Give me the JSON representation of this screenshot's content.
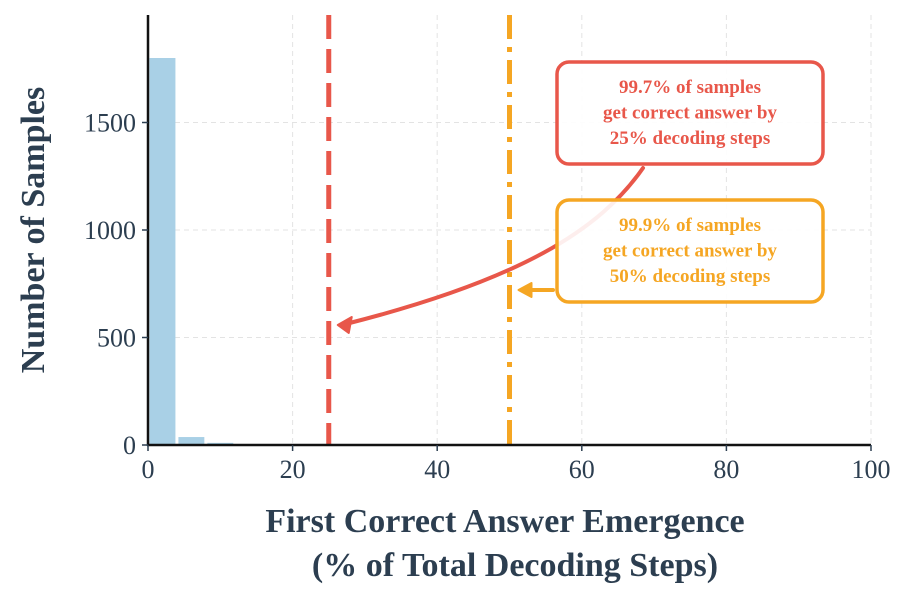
{
  "chart_data": {
    "type": "bar",
    "xlabel_lines": [
      "First Correct Answer Emergence",
      "(% of Total Decoding Steps)"
    ],
    "ylabel": "Number of Samples",
    "xlim": [
      0,
      100
    ],
    "ylim": [
      0,
      2000
    ],
    "xticks": [
      0,
      20,
      40,
      60,
      80,
      100
    ],
    "yticks": [
      0,
      500,
      1000,
      1500
    ],
    "grid": true,
    "bins": [
      {
        "start": 0,
        "end": 4,
        "count": 1800
      },
      {
        "start": 4,
        "end": 8,
        "count": 37
      },
      {
        "start": 8,
        "end": 12,
        "count": 10
      }
    ],
    "vlines": [
      {
        "x": 25,
        "style": "dashed",
        "color": "#e8574a"
      },
      {
        "x": 50,
        "style": "dashdot",
        "color": "#f5a623"
      }
    ],
    "annotations": [
      {
        "lines": [
          "99.7% of samples",
          "get correct answer by",
          "25% decoding steps"
        ],
        "color": "#e8574a",
        "points_to_x": 25
      },
      {
        "lines": [
          "99.9% of samples",
          "get correct answer by",
          "50% decoding steps"
        ],
        "color": "#f5a623",
        "points_to_x": 50
      }
    ],
    "colors": {
      "bar": "#a9d0e6",
      "axis": "#111111",
      "text": "#2c3e50",
      "grid": "#e3e3e3"
    }
  }
}
